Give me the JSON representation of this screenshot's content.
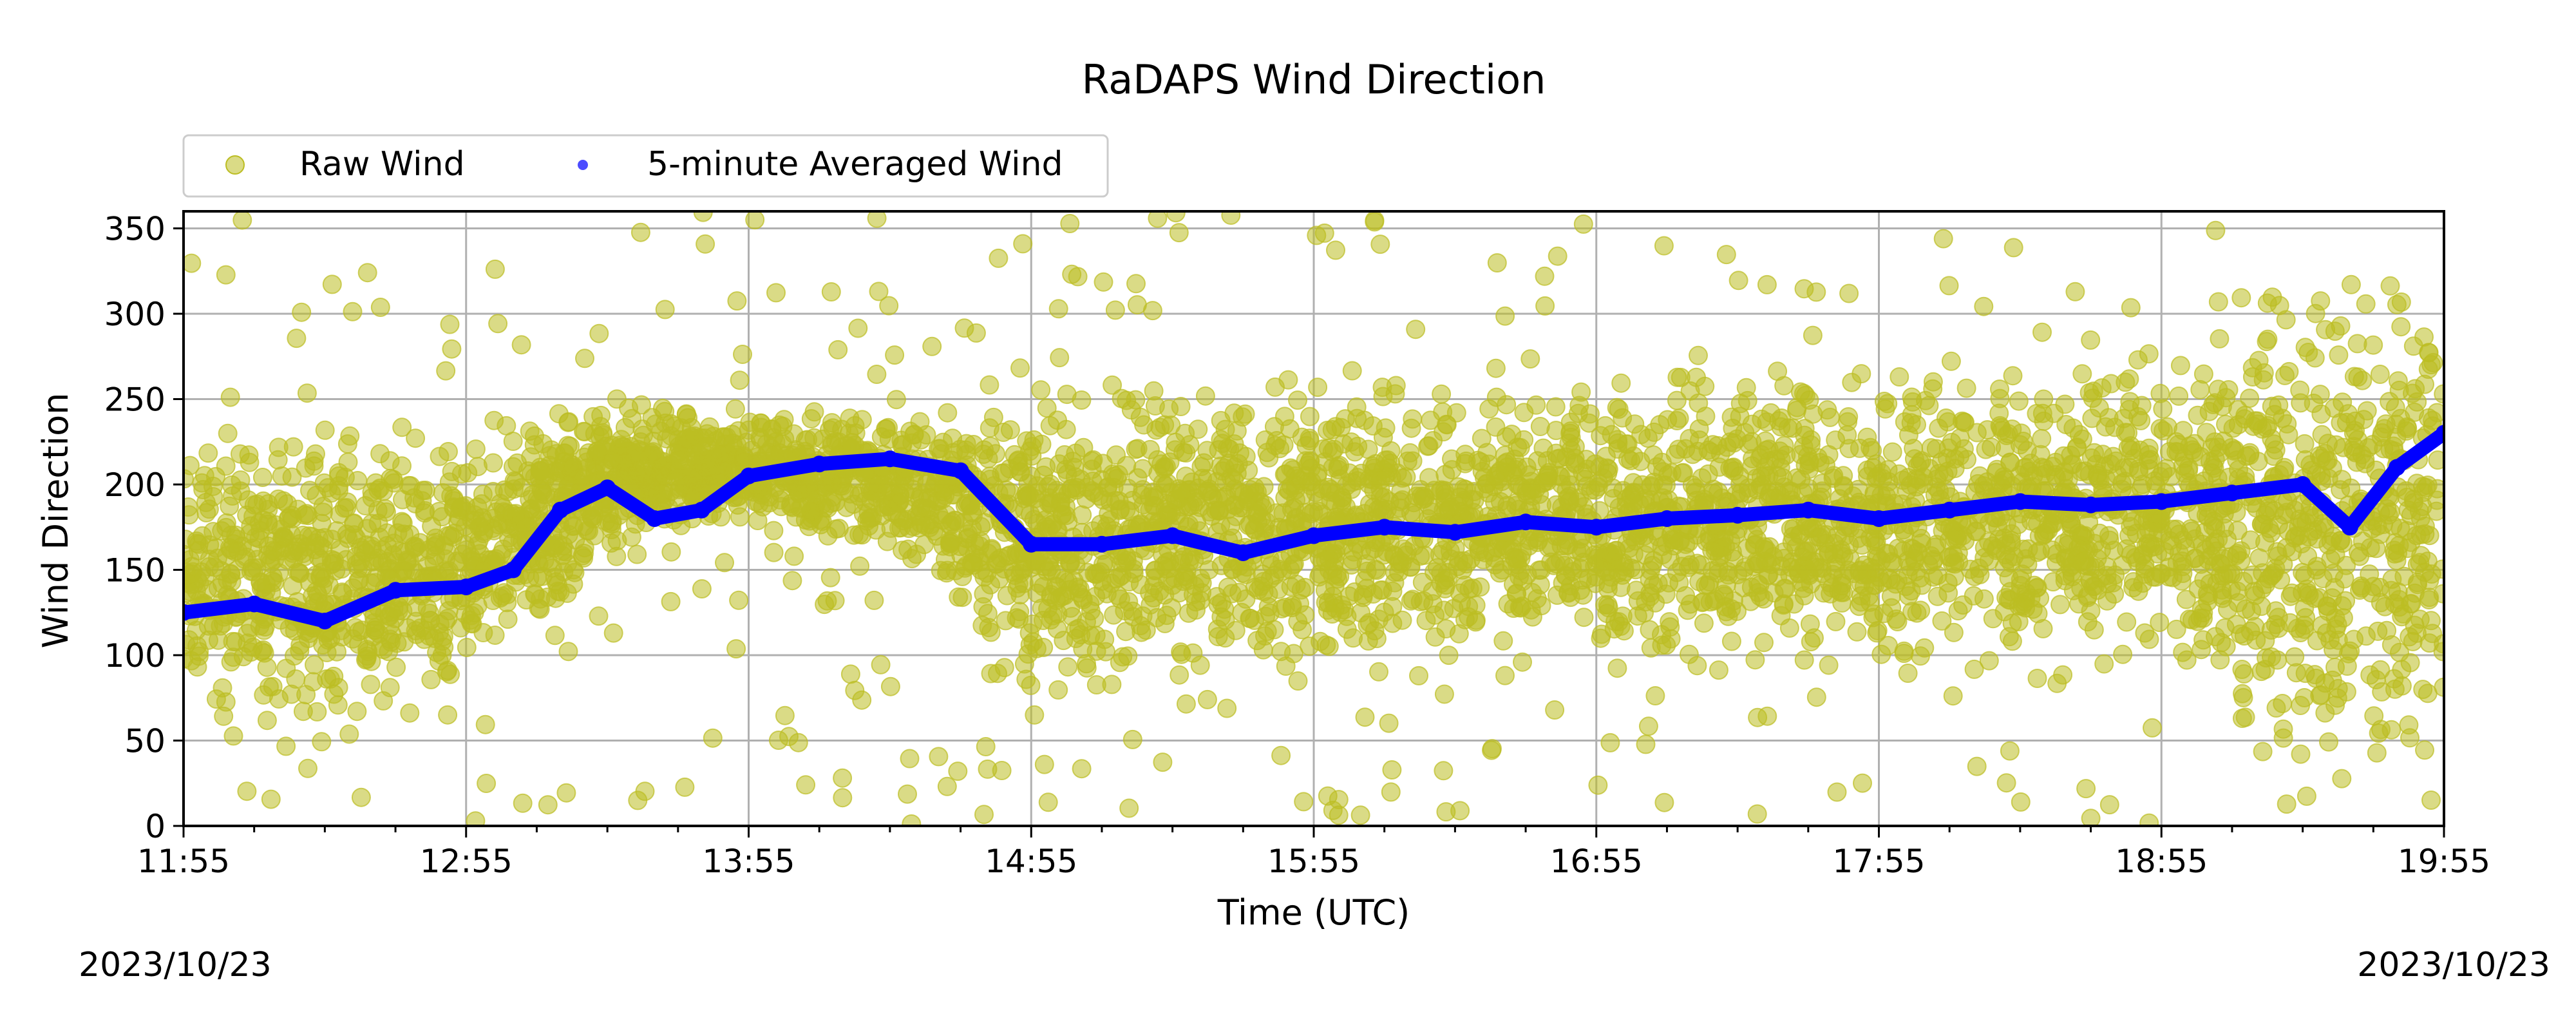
{
  "chart_data": {
    "type": "scatter",
    "title": "RaDAPS Wind Direction",
    "xlabel": "Time (UTC)",
    "ylabel": "Wind Direction",
    "x_ticks": [
      "11:55",
      "12:55",
      "13:55",
      "14:55",
      "15:55",
      "16:55",
      "17:55",
      "18:55",
      "19:55"
    ],
    "x_range": [
      "2023-10-23 11:55",
      "2023-10-23 19:55"
    ],
    "ylim": [
      0,
      360
    ],
    "y_ticks": [
      0,
      50,
      100,
      150,
      200,
      250,
      300,
      350
    ],
    "grid": true,
    "legend_position": "upper-left-outside",
    "date_left": "2023/10/23",
    "date_right": "2023/10/23",
    "series": [
      {
        "name": "Raw Wind",
        "marker": "circle",
        "color": "#bcbd22",
        "description_points": [
          {
            "time": "11:55",
            "typical_range": [
              40,
              250
            ]
          },
          {
            "time": "12:55",
            "typical_range": [
              50,
              250
            ]
          },
          {
            "time": "13:25",
            "typical_range": [
              150,
              260
            ]
          },
          {
            "time": "13:55",
            "typical_range": [
              170,
              250
            ]
          },
          {
            "time": "14:25",
            "typical_range": [
              150,
              250
            ]
          },
          {
            "time": "14:55",
            "typical_range": [
              60,
              270
            ]
          },
          {
            "time": "15:55",
            "typical_range": [
              70,
              280
            ]
          },
          {
            "time": "16:55",
            "typical_range": [
              80,
              280
            ]
          },
          {
            "time": "17:55",
            "typical_range": [
              80,
              280
            ]
          },
          {
            "time": "18:55",
            "typical_range": [
              80,
              280
            ]
          },
          {
            "time": "19:25",
            "typical_range": [
              0,
              360
            ]
          },
          {
            "time": "19:55",
            "typical_range": [
              0,
              360
            ]
          }
        ]
      },
      {
        "name": "5-minute Averaged Wind",
        "marker": "dot",
        "color": "#0000ff",
        "points": [
          {
            "time": "11:55",
            "value": 125
          },
          {
            "time": "12:10",
            "value": 130
          },
          {
            "time": "12:25",
            "value": 120
          },
          {
            "time": "12:40",
            "value": 138
          },
          {
            "time": "12:55",
            "value": 140
          },
          {
            "time": "13:05",
            "value": 150
          },
          {
            "time": "13:15",
            "value": 185
          },
          {
            "time": "13:25",
            "value": 198
          },
          {
            "time": "13:35",
            "value": 180
          },
          {
            "time": "13:45",
            "value": 185
          },
          {
            "time": "13:55",
            "value": 205
          },
          {
            "time": "14:10",
            "value": 212
          },
          {
            "time": "14:25",
            "value": 215
          },
          {
            "time": "14:40",
            "value": 208
          },
          {
            "time": "14:55",
            "value": 165
          },
          {
            "time": "15:10",
            "value": 165
          },
          {
            "time": "15:25",
            "value": 170
          },
          {
            "time": "15:40",
            "value": 160
          },
          {
            "time": "15:55",
            "value": 170
          },
          {
            "time": "16:10",
            "value": 175
          },
          {
            "time": "16:25",
            "value": 172
          },
          {
            "time": "16:40",
            "value": 178
          },
          {
            "time": "16:55",
            "value": 175
          },
          {
            "time": "17:10",
            "value": 180
          },
          {
            "time": "17:25",
            "value": 182
          },
          {
            "time": "17:40",
            "value": 185
          },
          {
            "time": "17:55",
            "value": 180
          },
          {
            "time": "18:10",
            "value": 185
          },
          {
            "time": "18:25",
            "value": 190
          },
          {
            "time": "18:40",
            "value": 188
          },
          {
            "time": "18:55",
            "value": 190
          },
          {
            "time": "19:10",
            "value": 195
          },
          {
            "time": "19:25",
            "value": 200
          },
          {
            "time": "19:35",
            "value": 175
          },
          {
            "time": "19:45",
            "value": 210
          },
          {
            "time": "19:55",
            "value": 230
          }
        ]
      }
    ]
  }
}
